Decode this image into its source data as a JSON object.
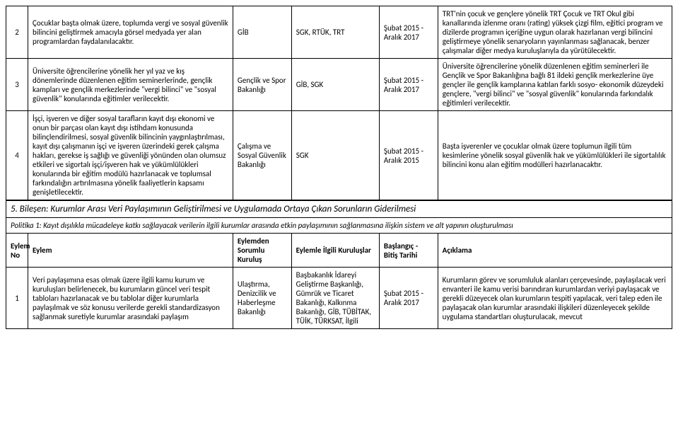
{
  "rows_top": [
    {
      "num": "2",
      "eylem": "Çocuklar başta olmak üzere, toplumda vergi ve sosyal güvenlik bilincini geliştirmek amacıyla görsel medyada yer alan programlardan faydalanılacaktır.",
      "sorumlu": "GİB",
      "kurulus": "SGK, RTÜK, TRT",
      "tarih": "Şubat 2015 - Aralık 2017",
      "aciklama": "TRT'nin çocuk ve gençlere yönelik TRT Çocuk ve TRT Okul gibi kanallarında izlenme oranı (rating) yüksek çizgi film, eğitici program ve dizilerde programın içeriğine uygun olarak hazırlanan vergi bilincini geliştirmeye yönelik senaryoların yayınlanması sağlanacak, benzer çalışmalar diğer medya kuruluşlarıyla da yürütülecektir."
    },
    {
      "num": "3",
      "eylem": "Üniversite öğrencilerine yönelik her yıl yaz ve kış dönemlerinde düzenlenen eğitim seminerlerinde, gençlik kampları ve gençlik merkezlerinde \"vergi bilinci\" ve \"sosyal güvenlik\" konularında eğitimler verilecektir.",
      "sorumlu": "Gençlik ve Spor Bakanlığı",
      "kurulus": "GİB, SGK",
      "tarih": "Şubat 2015 - Aralık 2017",
      "aciklama": "Üniversite öğrencilerine yönelik düzenlenen eğitim seminerleri ile Gençlik ve Spor Bakanlığına bağlı 81 ildeki gençlik merkezlerine üye gençler ile gençlik kamplarına katılan farklı sosyo- ekonomik düzeydeki gençlere, \"vergi bilinci\" ve \"sosyal güvenlik\" konularında farkındalık eğitimleri verilecektir."
    },
    {
      "num": "4",
      "eylem": "İşçi, işveren ve diğer sosyal tarafların kayıt dışı ekonomi ve onun bir parçası olan kayıt dışı istihdam konusunda bilinçlendirilmesi, sosyal güvenlik bilincinin yaygınlaştırılması, kayıt dışı çalışmanın işçi ve işveren üzerindeki gerek çalışma hakları, gerekse iş sağlığı ve güvenliği yönünden olan olumsuz etkileri ve sigortalı işçi/işveren hak ve yükümlülükleri konularında bir eğitim modülü hazırlanacak ve toplumsal farkındalığın artırılmasına yönelik faaliyetlerin kapsamı genişletilecektir.",
      "sorumlu": "Çalışma ve Sosyal Güvenlik Bakanlığı",
      "kurulus": "SGK",
      "tarih": "Şubat 2015 - Aralık 2015",
      "aciklama": "Başta işverenler ve çocuklar olmak üzere toplumun ilgili tüm kesimlerine yönelik sosyal güvenlik hak ve yükümlülükleri ile sigortalılık bilincini konu alan eğitim modülleri hazırlanacaktır."
    }
  ],
  "section5": {
    "title": "5. Bileşen: Kurumlar Arası Veri Paylaşımının Geliştirilmesi ve Uygulamada Ortaya Çıkan Sorunların Giderilmesi",
    "policy": "Politika 1: Kayıt dışılıkla mücadeleye katkı sağlayacak verilerin ilgili kurumlar arasında etkin paylaşımının sağlanmasına ilişkin sistem ve alt yapının oluşturulması",
    "headers": {
      "no": "Eylem No",
      "eylem": "Eylem",
      "sorumlu": "Eylemden Sorumlu Kuruluş",
      "kurulus": "Eylemle İlgili Kuruluşlar",
      "tarih": "Başlangıç - Bitiş Tarihi",
      "aciklama": "Açıklama"
    },
    "rows": [
      {
        "num": "1",
        "eylem": "Veri paylaşımına esas olmak üzere ilgili kamu kurum ve kuruluşları belirlenecek, bu kurumların güncel veri tespit tabloları hazırlanacak ve bu tablolar diğer kurumlarla paylaşılmak ve söz konusu verilerde gerekli standardizasyon sağlanmak suretiyle kurumlar arasındaki paylaşım",
        "sorumlu": "Ulaştırma, Denizcilik ve Haberleşme Bakanlığı",
        "kurulus": "Başbakanlık İdareyi Geliştirme Başkanlığı, Gümrük ve Ticaret Bakanlığı, Kalkınma Bakanlığı, GİB, TÜBİTAK, TÜİK, TÜRKSAT, İlgili",
        "tarih": "Şubat 2015 - Aralık 2017",
        "aciklama": "Kurumların görev ve sorumluluk alanları çerçevesinde, paylaşılacak veri envanteri ile kamu verisi barındıran kurumlardan veriyi paylaşacak ve gerekli düzeyecek olan kurumların tespiti yapılacak, veri talep eden ile paylaşacak olan kurumlar arasındaki ilişkileri düzenleyecek şekilde uygulama standartları oluşturulacak, mevcut"
      }
    ]
  }
}
